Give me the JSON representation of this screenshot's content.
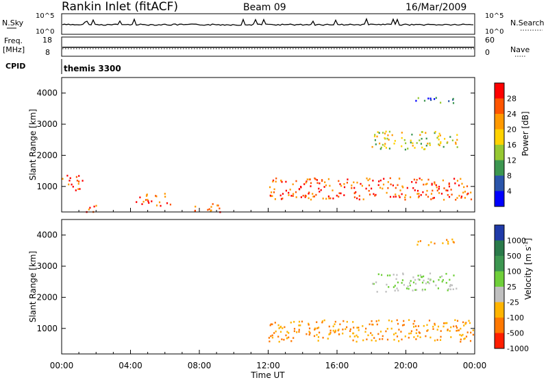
{
  "header": {
    "station": "Rankin Inlet (fitACF)",
    "beam": "Beam 09",
    "date": "16/Mar/2009"
  },
  "top_panels": {
    "nsky_label": "N.Sky",
    "nsearch_label": "N.Search",
    "freq_label_1": "Freq.",
    "freq_label_2": "[MHz]",
    "nave_label": "Nave",
    "cpid_label": "CPID",
    "cpid_value": "themis 3300",
    "noise_left_ticks": [
      "10^5",
      "10^0"
    ],
    "noise_right_ticks": [
      "10^5",
      "10^0"
    ],
    "freq_ticks": [
      "18",
      "8"
    ],
    "nave_ticks": [
      "60",
      "0"
    ]
  },
  "chart_data": [
    {
      "type": "heatmap",
      "panel": "power",
      "ylabel": "Slant Range [km]",
      "xlabel": "",
      "x_ticks": [
        "00:00",
        "04:00",
        "08:00",
        "12:00",
        "16:00",
        "20:00",
        "00:00"
      ],
      "xlim_hours": [
        0,
        24
      ],
      "ylim": [
        180,
        4500
      ],
      "y_ticks": [
        1000,
        2000,
        3000,
        4000
      ],
      "colorbar": {
        "label": "Power [dB]",
        "ticks": [
          "28",
          "24",
          "20",
          "16",
          "12",
          "8",
          "4"
        ],
        "colors": [
          "#ff0000",
          "#ff5500",
          "#ff9900",
          "#ffd200",
          "#96c832",
          "#3c9650",
          "#2a55aa",
          "#0000ff"
        ]
      },
      "features": [
        {
          "hours": [
            0,
            1.2
          ],
          "range_km": [
            900,
            1400
          ],
          "level": "high"
        },
        {
          "hours": [
            1.4,
            2.2
          ],
          "range_km": [
            200,
            500
          ],
          "level": "high"
        },
        {
          "hours": [
            4.3,
            6.3
          ],
          "range_km": [
            400,
            800
          ],
          "level": "high"
        },
        {
          "hours": [
            7.6,
            9.2
          ],
          "range_km": [
            200,
            500
          ],
          "level": "high"
        },
        {
          "hours": [
            12,
            23.9
          ],
          "range_km": [
            600,
            1300
          ],
          "level": "high"
        },
        {
          "hours": [
            18,
            23
          ],
          "range_km": [
            2200,
            2800
          ],
          "level": "medium"
        },
        {
          "hours": [
            20.5,
            23
          ],
          "range_km": [
            3700,
            3900
          ],
          "level": "low"
        }
      ]
    },
    {
      "type": "heatmap",
      "panel": "velocity",
      "ylabel": "Slant Range [km]",
      "xlabel": "Time UT",
      "x_ticks": [
        "00:00",
        "04:00",
        "08:00",
        "12:00",
        "16:00",
        "20:00",
        "00:00"
      ],
      "xlim_hours": [
        0,
        24
      ],
      "ylim": [
        180,
        4500
      ],
      "y_ticks": [
        1000,
        2000,
        3000,
        4000
      ],
      "colorbar": {
        "label_main": "Velocity [m s",
        "label_sup": "-1",
        "label_end": "]",
        "ticks": [
          "1000",
          "500",
          "100",
          "25",
          "-25",
          "-100",
          "-500",
          "-1000"
        ],
        "colors": [
          "#1f3aa8",
          "#2a7a4a",
          "#3c9650",
          "#6fcf3a",
          "#c0c0c0",
          "#ffb400",
          "#ff7800",
          "#ff1e00"
        ]
      },
      "features": [
        {
          "hours": [
            12,
            23.9
          ],
          "range_km": [
            600,
            1300
          ],
          "level": "negative"
        },
        {
          "hours": [
            18,
            23
          ],
          "range_km": [
            2200,
            2800
          ],
          "level": "near-zero"
        },
        {
          "hours": [
            20.5,
            23
          ],
          "range_km": [
            3700,
            3900
          ],
          "level": "negative"
        }
      ]
    }
  ]
}
